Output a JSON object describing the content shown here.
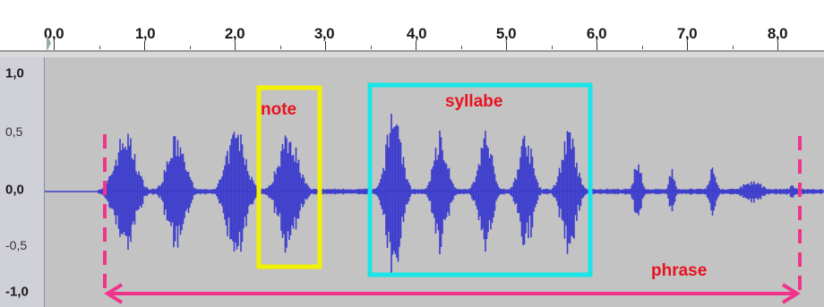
{
  "ruler": {
    "ticks": [
      "0,0",
      "1,0",
      "2,0",
      "3,0",
      "4,0",
      "5,0",
      "6,0",
      "7,0",
      "8,0"
    ]
  },
  "amplitude_scale": {
    "top": "1,0",
    "upper_mid": "0,5",
    "center": "0,0",
    "lower_mid": "-0,5",
    "bottom": "-1,0"
  },
  "annotations": {
    "note": "note",
    "syllable": "syllabe",
    "phrase": "phrase"
  },
  "colors": {
    "waveform": "#3c3ccd",
    "note_box": "#f2f200",
    "syllable_box": "#19e6e6",
    "phrase_marker": "#f0348a",
    "label_text": "#e8121e"
  }
}
